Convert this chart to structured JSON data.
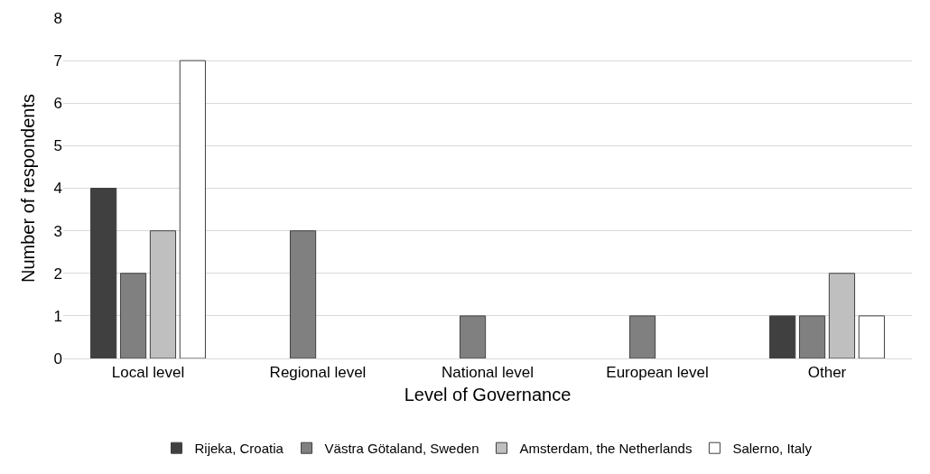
{
  "chart_data": {
    "type": "bar",
    "xlabel": "Level of Governance",
    "ylabel": "Number of respondents",
    "categories": [
      "Local level",
      "Regional level",
      "National level",
      "European level",
      "Other"
    ],
    "series": [
      {
        "name": "Rijeka, Croatia",
        "color": "#404040",
        "values": [
          4,
          0,
          0,
          0,
          1
        ]
      },
      {
        "name": "Västra Götaland, Sweden",
        "color": "#808080",
        "values": [
          2,
          3,
          1,
          1,
          1
        ]
      },
      {
        "name": "Amsterdam, the Netherlands",
        "color": "#bfbfbf",
        "values": [
          3,
          0,
          0,
          0,
          2
        ]
      },
      {
        "name": "Salerno, Italy",
        "color": "#ffffff",
        "values": [
          7,
          0,
          0,
          0,
          1
        ]
      }
    ],
    "ylim": [
      0,
      8
    ],
    "yticks": [
      0,
      1,
      2,
      3,
      4,
      5,
      6,
      7,
      8
    ],
    "grid": "y",
    "legend": "bottom"
  }
}
